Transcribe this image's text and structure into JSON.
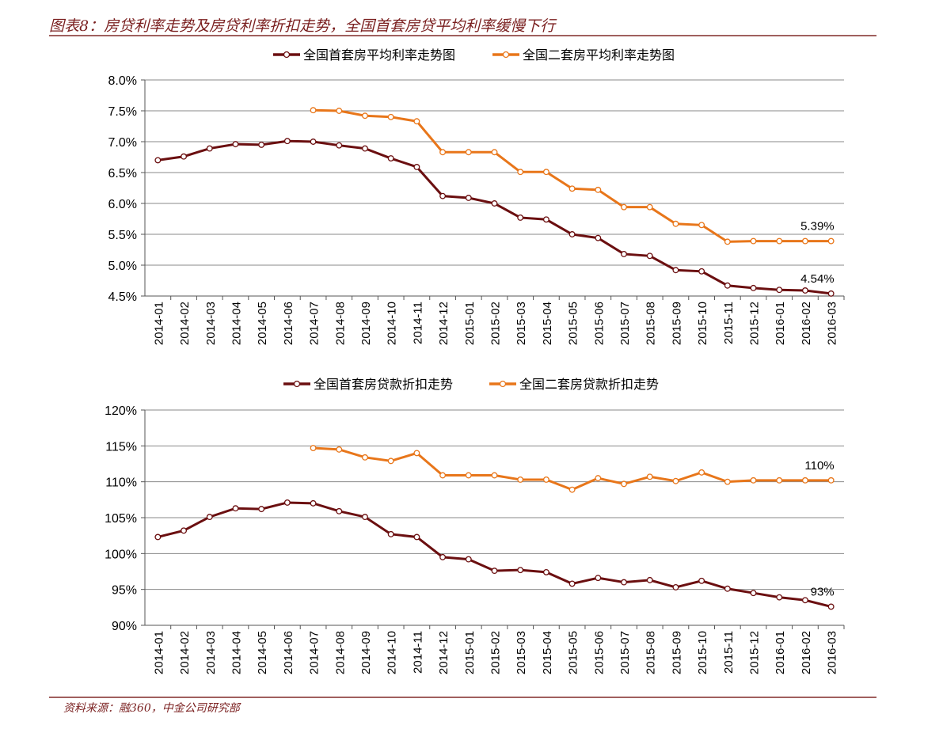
{
  "title": "图表8：房贷利率走势及房贷利率折扣走势，全国首套房贷平均利率缓慢下行",
  "source": "资料来源：融360，中金公司研究部",
  "colors": {
    "first_home": "#6b0f10",
    "second_home": "#e8761a",
    "title": "#7a1f1f"
  },
  "chart_data": [
    {
      "type": "line",
      "categories": [
        "2014-01",
        "2014-02",
        "2014-03",
        "2014-04",
        "2014-05",
        "2014-06",
        "2014-07",
        "2014-08",
        "2014-09",
        "2014-10",
        "2014-11",
        "2014-12",
        "2015-01",
        "2015-02",
        "2015-03",
        "2015-04",
        "2015-05",
        "2015-06",
        "2015-07",
        "2015-08",
        "2015-09",
        "2015-10",
        "2015-11",
        "2015-12",
        "2016-01",
        "2016-02",
        "2016-03"
      ],
      "ylim": [
        4.5,
        8.0
      ],
      "yticks": [
        "4.5%",
        "5.0%",
        "5.5%",
        "6.0%",
        "6.5%",
        "7.0%",
        "7.5%",
        "8.0%"
      ],
      "grid": true,
      "legend": "top",
      "series": [
        {
          "name": "全国首套房平均利率走势图",
          "color": "#6b0f10",
          "values": [
            6.7,
            6.76,
            6.89,
            6.96,
            6.95,
            7.01,
            7.0,
            6.94,
            6.89,
            6.73,
            6.59,
            6.12,
            6.09,
            6.0,
            5.77,
            5.74,
            5.5,
            5.44,
            5.18,
            5.15,
            4.92,
            4.9,
            4.67,
            4.63,
            4.6,
            4.59,
            4.54
          ],
          "end_label": "4.54%"
        },
        {
          "name": "全国二套房平均利率走势图",
          "color": "#e8761a",
          "values": [
            null,
            null,
            null,
            null,
            null,
            null,
            7.51,
            7.5,
            7.42,
            7.4,
            7.33,
            6.83,
            6.83,
            6.83,
            6.51,
            6.51,
            6.24,
            6.22,
            5.94,
            5.94,
            5.67,
            5.65,
            5.38,
            5.39,
            5.39,
            5.39,
            5.39
          ],
          "end_label": "5.39%"
        }
      ]
    },
    {
      "type": "line",
      "categories": [
        "2014-01",
        "2014-02",
        "2014-03",
        "2014-04",
        "2014-05",
        "2014-06",
        "2014-07",
        "2014-08",
        "2014-09",
        "2014-10",
        "2014-11",
        "2014-12",
        "2015-01",
        "2015-02",
        "2015-03",
        "2015-04",
        "2015-05",
        "2015-06",
        "2015-07",
        "2015-08",
        "2015-09",
        "2015-10",
        "2015-11",
        "2015-12",
        "2016-01",
        "2016-02",
        "2016-03"
      ],
      "ylim": [
        90,
        120
      ],
      "yticks": [
        "90%",
        "95%",
        "100%",
        "105%",
        "110%",
        "115%",
        "120%"
      ],
      "grid": true,
      "legend": "top",
      "series": [
        {
          "name": "全国首套房贷款折扣走势",
          "color": "#6b0f10",
          "values": [
            102.3,
            103.2,
            105.1,
            106.3,
            106.2,
            107.1,
            107.0,
            105.9,
            105.1,
            102.7,
            102.3,
            99.5,
            99.2,
            97.6,
            97.7,
            97.4,
            95.8,
            96.6,
            96.0,
            96.3,
            95.3,
            96.2,
            95.1,
            94.5,
            93.9,
            93.5,
            92.6
          ],
          "end_label": "93%"
        },
        {
          "name": "全国二套房贷款折扣走势",
          "color": "#e8761a",
          "values": [
            null,
            null,
            null,
            null,
            null,
            null,
            114.7,
            114.5,
            113.4,
            112.9,
            114.0,
            110.9,
            110.9,
            110.9,
            110.3,
            110.3,
            108.9,
            110.5,
            109.7,
            110.7,
            110.1,
            111.3,
            110.0,
            110.2,
            110.2,
            110.2,
            110.2
          ],
          "end_label": "110%"
        }
      ]
    }
  ]
}
